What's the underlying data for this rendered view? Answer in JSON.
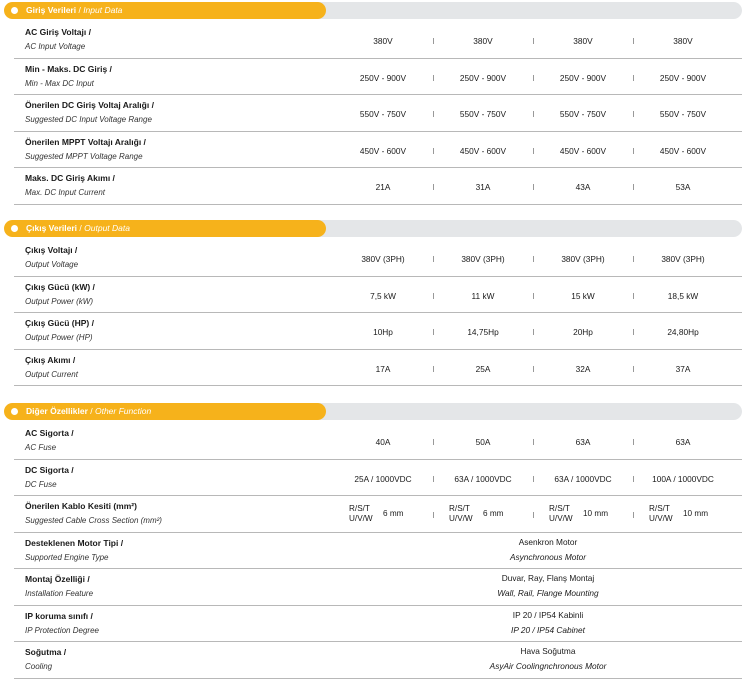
{
  "colors": {
    "accent": "#f6b21b",
    "track": "#e4e6e8",
    "divider": "#b8b8b8"
  },
  "sections": [
    {
      "title_tr": "Giriş Verileri",
      "title_sep": " / ",
      "title_en": "Input Data",
      "rows": [
        {
          "tr": "AC Giriş Voltajı /",
          "en": "AC Input Voltage",
          "values": [
            "380V",
            "380V",
            "380V",
            "380V"
          ]
        },
        {
          "tr": "Min - Maks. DC Giriş /",
          "en": "Min - Max DC Input",
          "values": [
            "250V - 900V",
            "250V - 900V",
            "250V - 900V",
            "250V - 900V"
          ]
        },
        {
          "tr": "Önerilen DC Giriş Voltaj Aralığı /",
          "en": "Suggested DC Input Voltage Range",
          "values": [
            "550V - 750V",
            "550V - 750V",
            "550V - 750V",
            "550V - 750V"
          ]
        },
        {
          "tr": "Önerilen MPPT Voltajı Aralığı /",
          "en": "Suggested MPPT Voltage Range",
          "values": [
            "450V - 600V",
            "450V - 600V",
            "450V - 600V",
            "450V - 600V"
          ]
        },
        {
          "tr": "Maks. DC Giriş Akımı /",
          "en": "Max. DC Input Current",
          "values": [
            "21A",
            "31A",
            "43A",
            "53A"
          ]
        }
      ]
    },
    {
      "title_tr": "Çıkış Verileri",
      "title_sep": " / ",
      "title_en": "Output Data",
      "rows": [
        {
          "tr": "Çıkış Voltajı /",
          "en": "Output Voltage",
          "values": [
            "380V (3PH)",
            "380V (3PH)",
            "380V (3PH)",
            "380V (3PH)"
          ]
        },
        {
          "tr": "Çıkış Gücü (kW) /",
          "en": "Output Power (kW)",
          "values": [
            "7,5 kW",
            "11 kW",
            "15  kW",
            "18,5  kW"
          ]
        },
        {
          "tr": "Çıkış Gücü (HP) /",
          "en": "Output Power (HP)",
          "values": [
            "10Hp",
            "14,75Hp",
            "20Hp",
            "24,80Hp"
          ]
        },
        {
          "tr": "Çıkış Akımı /",
          "en": "Output Current",
          "values": [
            "17A",
            "25A",
            "32A",
            "37A"
          ]
        }
      ]
    },
    {
      "title_tr": "Diğer Özellikler",
      "title_sep": " / ",
      "title_en": "Other Function",
      "rows": [
        {
          "tr": "AC Sigorta /",
          "en": "AC Fuse",
          "values": [
            "40A",
            "50A",
            "63A",
            "63A"
          ]
        },
        {
          "tr": "DC Sigorta /",
          "en": "DC Fuse",
          "values": [
            "25A / 1000VDC",
            "63A / 1000VDC",
            "63A / 1000VDC",
            "100A / 1000VDC"
          ]
        },
        {
          "tr": "Önerilen Kablo Kesiti (mm²)",
          "en": "Suggested Cable Cross Section (mm²)",
          "cable": [
            {
              "l1": "R/S/T",
              "l2": "U/V/W",
              "size": "6 mm"
            },
            {
              "l1": "R/S/T",
              "l2": "U/V/W",
              "size": "6 mm"
            },
            {
              "l1": "R/S/T",
              "l2": "U/V/W",
              "size": "10 mm"
            },
            {
              "l1": "R/S/T",
              "l2": "U/V/W",
              "size": "10 mm"
            }
          ]
        },
        {
          "tr": "Desteklenen Motor Tipi /",
          "en": "Supported Engine Type",
          "span_tr": "Asenkron Motor",
          "span_en": "Asynchronous Motor"
        },
        {
          "tr": "Montaj Özelliği /",
          "en": "Installation Feature",
          "span_tr": "Duvar, Ray, Flanş Montaj",
          "span_en": "Wall, Rail, Flange Mounting"
        },
        {
          "tr": "IP koruma sınıfı /",
          "en": "IP Protection Degree",
          "span_tr": "IP 20 / IP54 Kabinli",
          "span_en": "IP 20 / IP54 Cabinet"
        },
        {
          "tr": "Soğutma /",
          "en": "Cooling",
          "span_tr": "Hava Soğutma",
          "span_en": "AsyAir Coolingnchronous Motor"
        }
      ]
    }
  ]
}
